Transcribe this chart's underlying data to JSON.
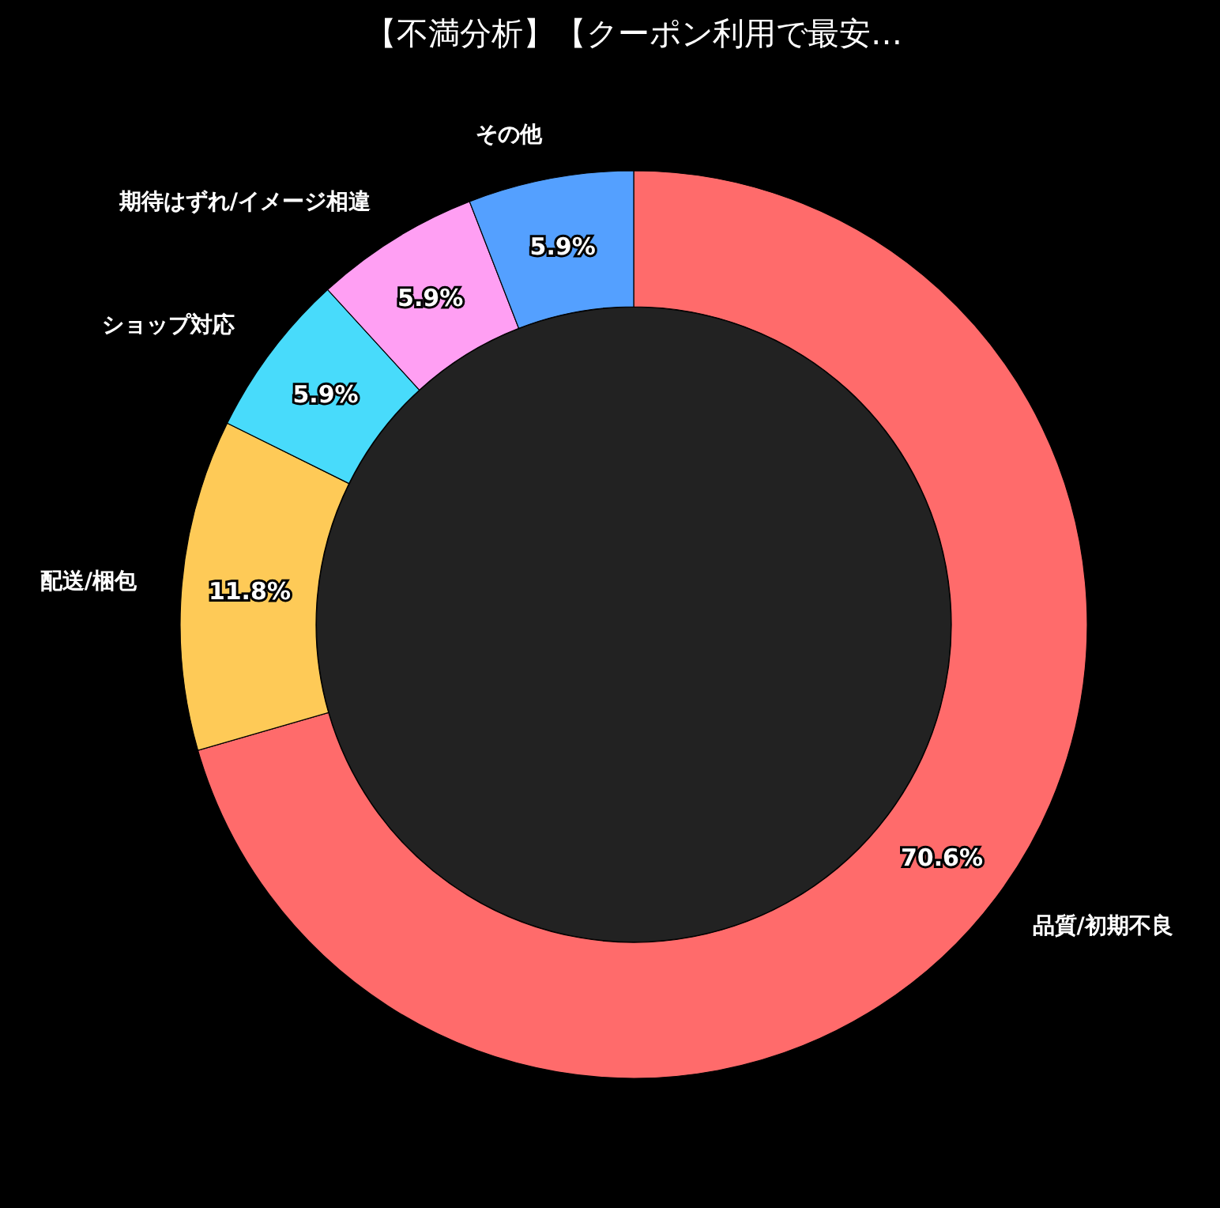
{
  "chart_data": {
    "type": "donut",
    "title": "【不満分析】【クーポン利用で最安…",
    "categories": [
      "品質/初期不良",
      "配送/梱包",
      "ショップ対応",
      "期待はずれ/イメージ相違",
      "その他"
    ],
    "values": [
      70.6,
      11.8,
      5.9,
      5.9,
      5.9
    ],
    "colors": [
      "#ff6b6b",
      "#feca57",
      "#48dbfb",
      "#ff9ff3",
      "#54a0ff"
    ],
    "value_labels": [
      "70.6%",
      "11.8%",
      "5.9%",
      "5.9%",
      "5.9%"
    ]
  }
}
